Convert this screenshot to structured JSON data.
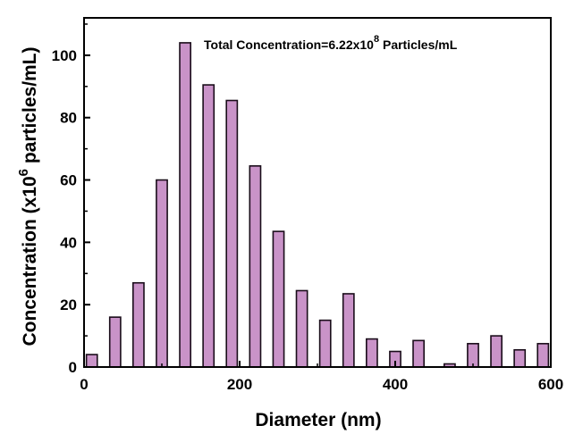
{
  "chart_data": {
    "type": "bar",
    "xlabel": "Diameter (nm)",
    "ylabel_prefix": "Concentration (x10",
    "ylabel_sup": "6",
    "ylabel_suffix": " particles/mL)",
    "annotation": {
      "prefix": "Total Concentration=6.22x10",
      "sup": "8",
      "suffix": " Particles/mL"
    },
    "xlim": [
      0,
      600
    ],
    "ylim": [
      0,
      112
    ],
    "xticks": [
      0,
      200,
      400,
      600
    ],
    "yticks": [
      0,
      20,
      40,
      60,
      80,
      100
    ],
    "bar_color": "#c993c8",
    "bar_edge_color": "#1a0d1a",
    "bar_width": 14,
    "x": [
      10,
      40,
      70,
      100,
      130,
      160,
      190,
      220,
      250,
      280,
      310,
      340,
      370,
      400,
      430,
      470,
      500,
      530,
      560,
      590
    ],
    "values": [
      4,
      16,
      27,
      60,
      104,
      90.5,
      85.5,
      64.5,
      43.5,
      24.5,
      15,
      23.5,
      9,
      5,
      8.5,
      1,
      7.5,
      10,
      5.5,
      7.5
    ]
  }
}
